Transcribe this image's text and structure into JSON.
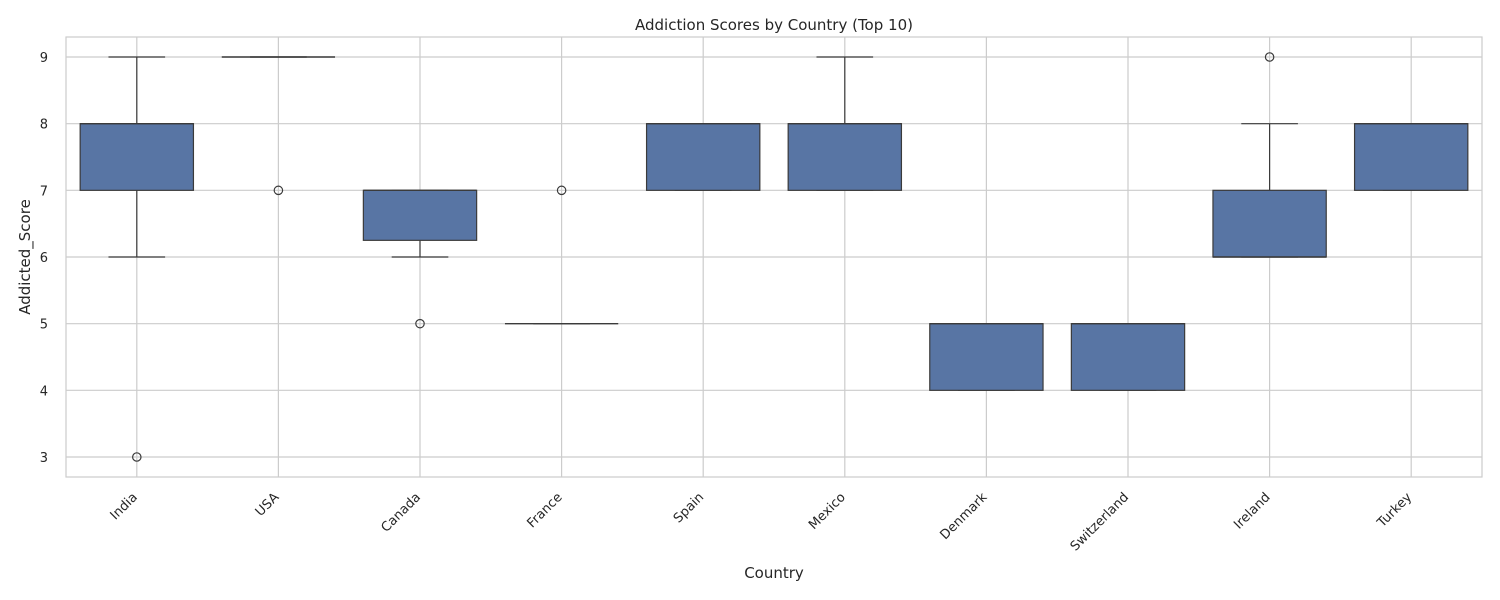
{
  "chart_data": {
    "type": "box",
    "title": "Addiction Scores by Country (Top 10)",
    "xlabel": "Country",
    "ylabel": "Addicted_Score",
    "ylim": [
      2.7,
      9.3
    ],
    "yticks": [
      3,
      4,
      5,
      6,
      7,
      8,
      9
    ],
    "grid": true,
    "box_color": "#5875a4",
    "line_color": "#3b3b3b",
    "grid_color": "#cccccc",
    "categories": [
      "India",
      "USA",
      "Canada",
      "France",
      "Spain",
      "Mexico",
      "Denmark",
      "Switzerland",
      "Ireland",
      "Turkey"
    ],
    "boxes": [
      {
        "category": "India",
        "whisker_low": 6,
        "q1": 7,
        "median": 8,
        "q3": 8,
        "whisker_high": 9,
        "outliers": [
          3
        ]
      },
      {
        "category": "USA",
        "whisker_low": 9,
        "q1": 9,
        "median": 9,
        "q3": 9,
        "whisker_high": 9,
        "outliers": [
          7
        ]
      },
      {
        "category": "Canada",
        "whisker_low": 6,
        "q1": 6.25,
        "median": 7,
        "q3": 7,
        "whisker_high": 7,
        "outliers": [
          5
        ]
      },
      {
        "category": "France",
        "whisker_low": 5,
        "q1": 5,
        "median": 5,
        "q3": 5,
        "whisker_high": 5,
        "outliers": [
          7
        ]
      },
      {
        "category": "Spain",
        "whisker_low": 7,
        "q1": 7,
        "median": 8,
        "q3": 8,
        "whisker_high": 8,
        "outliers": []
      },
      {
        "category": "Mexico",
        "whisker_low": 7,
        "q1": 7,
        "median": 8,
        "q3": 8,
        "whisker_high": 9,
        "outliers": []
      },
      {
        "category": "Denmark",
        "whisker_low": 4,
        "q1": 4,
        "median": 5,
        "q3": 5,
        "whisker_high": 5,
        "outliers": []
      },
      {
        "category": "Switzerland",
        "whisker_low": 4,
        "q1": 4,
        "median": 5,
        "q3": 5,
        "whisker_high": 5,
        "outliers": []
      },
      {
        "category": "Ireland",
        "whisker_low": 6,
        "q1": 6,
        "median": 6,
        "q3": 7,
        "whisker_high": 8,
        "outliers": [
          9
        ]
      },
      {
        "category": "Turkey",
        "whisker_low": 7,
        "q1": 7,
        "median": 8,
        "q3": 8,
        "whisker_high": 8,
        "outliers": []
      }
    ]
  }
}
